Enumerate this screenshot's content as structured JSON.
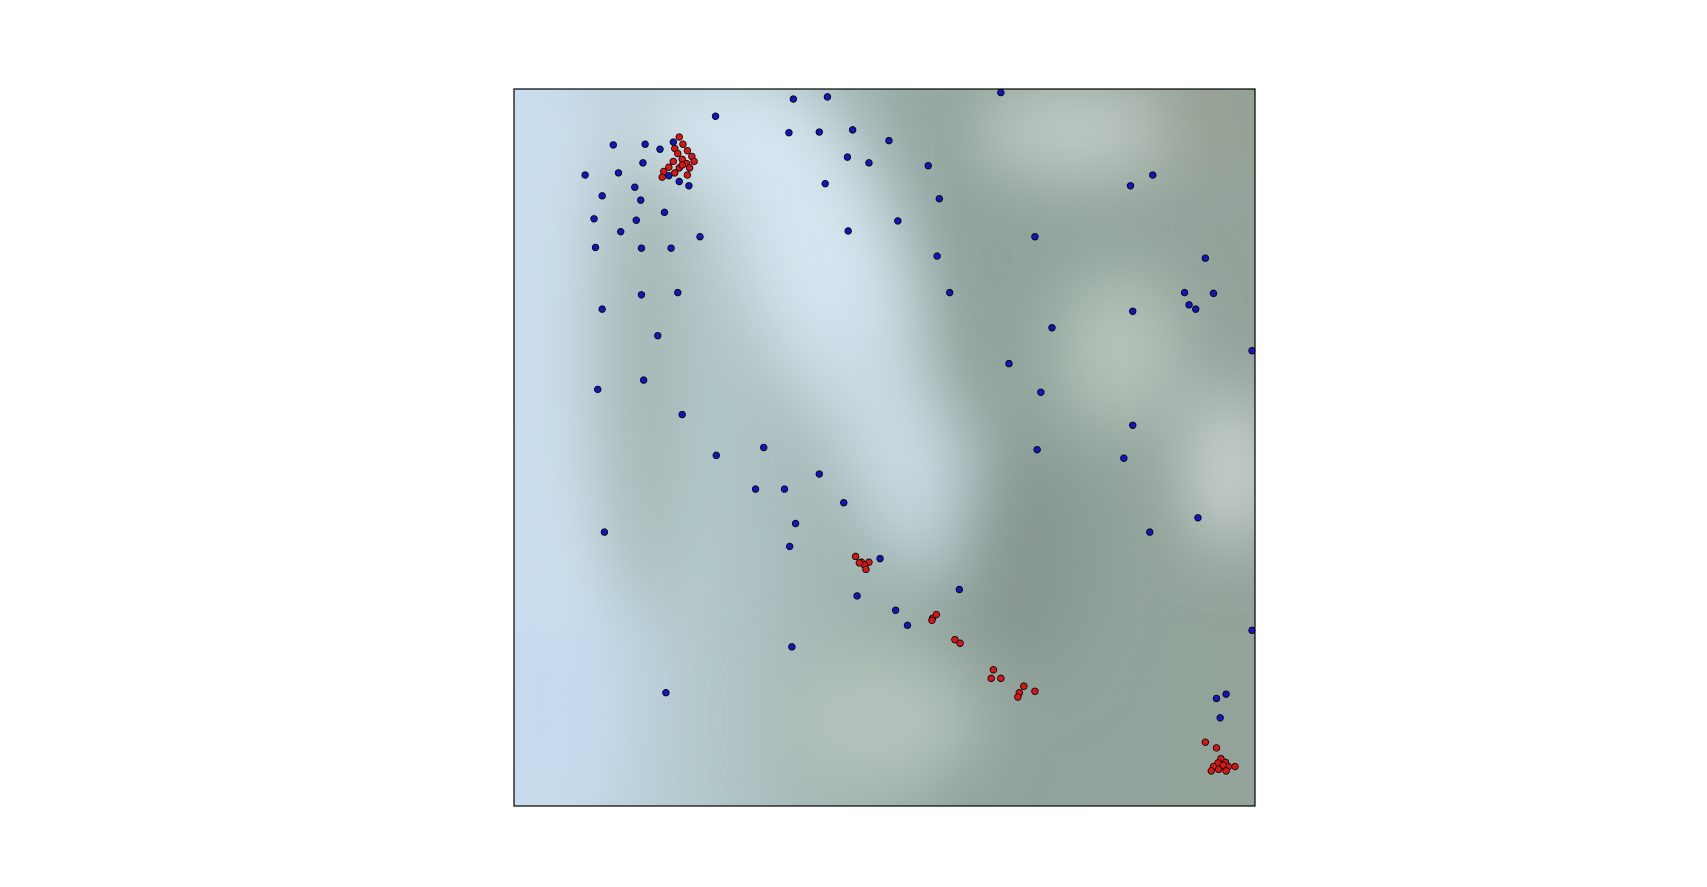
{
  "chart_data": {
    "type": "scatter",
    "xlim": [
      0,
      100
    ],
    "ylim": [
      0,
      100
    ],
    "series": [
      {
        "color": "#1414c0",
        "x": [
          37.7,
          42.3,
          65.7,
          27.2,
          13.4,
          17.7,
          19.7,
          21.5,
          37.1,
          41.2,
          45.7,
          50.6,
          45.0,
          47.9,
          55.9,
          9.6,
          14.1,
          17.4,
          20.9,
          22.3,
          23.6,
          16.3,
          11.9,
          17.1,
          42.0,
          57.4,
          83.2,
          86.2,
          20.3,
          16.5,
          10.8,
          14.4,
          25.1,
          45.1,
          51.8,
          70.3,
          11.0,
          17.2,
          21.2,
          57.1,
          93.3,
          17.2,
          22.1,
          11.9,
          58.8,
          90.5,
          94.4,
          91.1,
          92.0,
          83.5,
          72.6,
          19.4,
          99.6,
          66.8,
          17.5,
          11.3,
          71.1,
          22.7,
          83.5,
          33.7,
          27.3,
          70.6,
          82.3,
          41.2,
          32.6,
          36.5,
          44.5,
          38.0,
          12.2,
          85.8,
          92.3,
          37.2,
          49.4,
          60.1,
          46.3,
          51.5,
          53.1,
          99.6,
          37.5,
          20.5,
          96.1,
          94.8,
          95.3
        ],
        "y": [
          98.6,
          98.9,
          99.5,
          96.2,
          92.2,
          92.3,
          91.6,
          92.6,
          93.9,
          94.0,
          94.3,
          92.8,
          90.5,
          89.7,
          89.3,
          88.0,
          88.3,
          89.7,
          87.9,
          87.1,
          86.5,
          86.3,
          85.1,
          84.5,
          86.8,
          84.7,
          86.5,
          88.0,
          82.8,
          81.7,
          81.9,
          80.1,
          79.4,
          80.2,
          81.6,
          79.4,
          77.9,
          77.8,
          77.8,
          76.7,
          76.4,
          71.3,
          71.6,
          69.3,
          71.6,
          71.6,
          71.5,
          69.9,
          69.3,
          69.0,
          66.7,
          65.6,
          63.5,
          61.7,
          59.4,
          58.1,
          57.7,
          54.6,
          53.1,
          50.0,
          48.9,
          49.7,
          48.5,
          46.3,
          44.2,
          44.2,
          42.3,
          39.4,
          38.2,
          38.2,
          40.2,
          36.2,
          34.5,
          30.2,
          29.3,
          27.3,
          25.2,
          24.5,
          22.2,
          15.8,
          15.6,
          15.0,
          12.3
        ]
      },
      {
        "color": "#dd1414",
        "x": [
          22.3,
          22.8,
          21.7,
          23.4,
          22.1,
          24.0,
          22.7,
          21.5,
          23.3,
          24.3,
          20.9,
          22.3,
          23.7,
          20.2,
          21.7,
          20.0,
          23.4,
          22.7,
          46.1,
          46.9,
          47.9,
          47.3,
          47.5,
          46.6,
          56.5,
          57.0,
          56.4,
          59.5,
          60.2,
          64.7,
          64.4,
          65.7,
          68.8,
          68.2,
          68.0,
          70.3,
          93.3,
          94.8,
          95.4,
          95.0,
          96.0,
          94.4,
          96.4,
          97.3,
          94.1,
          95.1,
          96.1,
          95.7
        ],
        "y": [
          93.3,
          92.3,
          91.7,
          91.4,
          91.0,
          90.6,
          90.2,
          89.9,
          89.6,
          89.9,
          89.1,
          89.0,
          89.0,
          88.5,
          88.3,
          87.7,
          88.0,
          89.4,
          34.8,
          34.0,
          34.0,
          33.6,
          33.0,
          33.9,
          26.2,
          26.7,
          25.9,
          23.2,
          22.7,
          19.0,
          17.8,
          17.8,
          16.7,
          15.8,
          15.2,
          16.0,
          8.9,
          8.1,
          6.6,
          6.0,
          6.1,
          5.5,
          5.5,
          5.5,
          4.9,
          5.1,
          4.9,
          5.7
        ]
      }
    ]
  }
}
